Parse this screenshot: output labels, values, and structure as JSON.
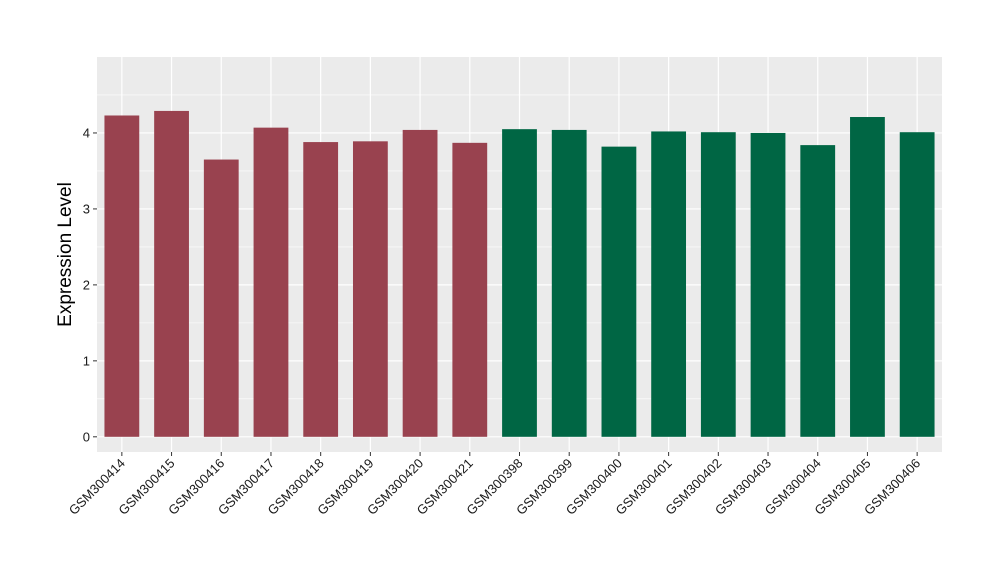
{
  "chart_data": {
    "type": "bar",
    "title": "",
    "xlabel": "",
    "ylabel": "Expression Level",
    "ylim": [
      -0.2,
      5.0
    ],
    "yticks": [
      0,
      1,
      2,
      3,
      4
    ],
    "grid": true,
    "panel_background": "#ebebeb",
    "categories": [
      "GSM300414",
      "GSM300415",
      "GSM300416",
      "GSM300417",
      "GSM300418",
      "GSM300419",
      "GSM300420",
      "GSM300421",
      "GSM300398",
      "GSM300399",
      "GSM300400",
      "GSM300401",
      "GSM300402",
      "GSM300403",
      "GSM300404",
      "GSM300405",
      "GSM300406"
    ],
    "values": [
      4.23,
      4.29,
      3.65,
      4.07,
      3.88,
      3.89,
      4.04,
      3.87,
      4.05,
      4.04,
      3.82,
      4.02,
      4.01,
      4.0,
      3.84,
      4.21,
      4.01
    ],
    "groups": [
      1,
      1,
      1,
      1,
      1,
      1,
      1,
      1,
      2,
      2,
      2,
      2,
      2,
      2,
      2,
      2,
      2
    ],
    "group_colors": {
      "1": "#99424f",
      "2": "#006644"
    }
  }
}
